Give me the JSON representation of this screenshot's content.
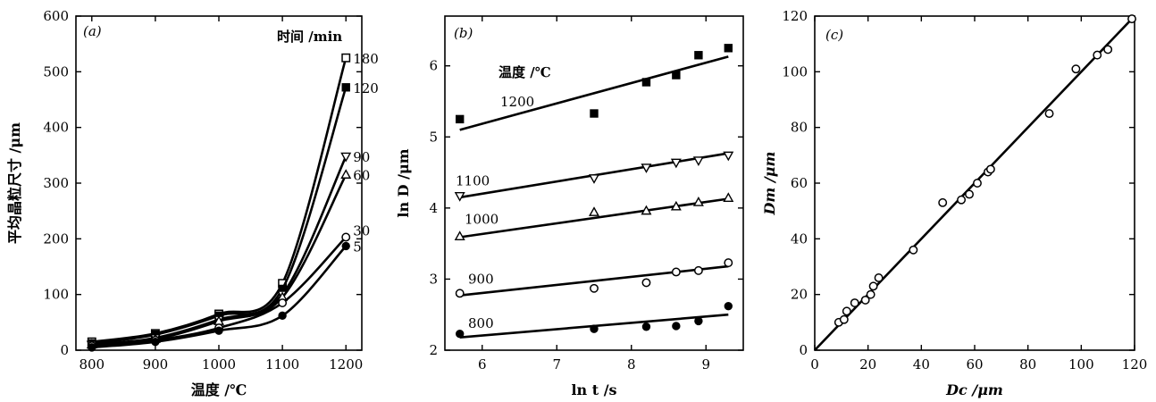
{
  "chart_data": [
    {
      "panel_label": "(a)",
      "type": "line",
      "xlabel": "温度 /℃",
      "ylabel": "平均晶粒尺寸 /μm",
      "xlim": [
        775,
        1225
      ],
      "ylim": [
        0,
        600
      ],
      "xticks": [
        800,
        900,
        1000,
        1100,
        1200
      ],
      "yticks": [
        0,
        100,
        200,
        300,
        400,
        500,
        600
      ],
      "legend_title": "时间 /min",
      "grid": false,
      "x": [
        800,
        900,
        1000,
        1100,
        1200
      ],
      "series": [
        {
          "name": "180",
          "marker": "open-square",
          "values": [
            15,
            30,
            65,
            120,
            525
          ]
        },
        {
          "name": "120",
          "marker": "filled-square",
          "values": [
            12,
            28,
            62,
            110,
            472
          ]
        },
        {
          "name": "90",
          "marker": "open-triangle-down",
          "values": [
            10,
            22,
            55,
            100,
            348
          ]
        },
        {
          "name": "60",
          "marker": "open-triangle-up",
          "values": [
            10,
            20,
            52,
            95,
            315
          ]
        },
        {
          "name": "30",
          "marker": "open-circle",
          "values": [
            8,
            18,
            40,
            85,
            203
          ]
        },
        {
          "name": "5",
          "marker": "filled-circle",
          "values": [
            5,
            15,
            35,
            62,
            187
          ]
        }
      ]
    },
    {
      "panel_label": "(b)",
      "type": "scatter",
      "xlabel": "ln t /s",
      "ylabel": "ln D /μm",
      "xlim": [
        5.5,
        9.5
      ],
      "ylim": [
        2,
        6.7
      ],
      "xticks": [
        6,
        7,
        8,
        9
      ],
      "yticks": [
        2,
        3,
        4,
        5,
        6
      ],
      "legend_title": "温度 /℃",
      "grid": false,
      "x": [
        5.7,
        7.5,
        8.2,
        8.6,
        8.9,
        9.3
      ],
      "series": [
        {
          "name": "1200",
          "marker": "filled-square",
          "values": [
            5.25,
            5.33,
            5.77,
            5.87,
            6.15,
            6.25
          ],
          "fit": [
            5.1,
            6.13
          ]
        },
        {
          "name": "1100",
          "marker": "open-triangle-down",
          "values": [
            4.17,
            4.42,
            4.57,
            4.64,
            4.67,
            4.74
          ],
          "fit": [
            4.15,
            4.77
          ]
        },
        {
          "name": "1000",
          "marker": "open-triangle-up",
          "values": [
            3.6,
            3.94,
            3.96,
            4.02,
            4.08,
            4.14
          ],
          "fit": [
            3.59,
            4.13
          ]
        },
        {
          "name": "900",
          "marker": "open-circle",
          "values": [
            2.8,
            2.87,
            2.95,
            3.1,
            3.12,
            3.23
          ],
          "fit": [
            2.77,
            3.18
          ]
        },
        {
          "name": "800",
          "marker": "filled-circle",
          "values": [
            2.23,
            2.3,
            2.33,
            2.34,
            2.41,
            2.62
          ],
          "fit": [
            2.18,
            2.5
          ]
        }
      ]
    },
    {
      "panel_label": "(c)",
      "type": "scatter",
      "xlabel": "Dc /μm",
      "ylabel": "Dm /μm",
      "xlim": [
        0,
        120
      ],
      "ylim": [
        0,
        120
      ],
      "xticks": [
        0,
        20,
        40,
        60,
        80,
        100,
        120
      ],
      "yticks": [
        0,
        20,
        40,
        60,
        80,
        100,
        120
      ],
      "grid": false,
      "line": [
        [
          0,
          0
        ],
        [
          120,
          120
        ]
      ],
      "points": [
        [
          9,
          10
        ],
        [
          11,
          11
        ],
        [
          12,
          14
        ],
        [
          15,
          17
        ],
        [
          19,
          18
        ],
        [
          21,
          20
        ],
        [
          22,
          23
        ],
        [
          24,
          26
        ],
        [
          37,
          36
        ],
        [
          48,
          53
        ],
        [
          55,
          54
        ],
        [
          58,
          56
        ],
        [
          61,
          60
        ],
        [
          65,
          64
        ],
        [
          66,
          65
        ],
        [
          88,
          85
        ],
        [
          98,
          101
        ],
        [
          106,
          106
        ],
        [
          110,
          108
        ],
        [
          119,
          119
        ]
      ]
    }
  ]
}
